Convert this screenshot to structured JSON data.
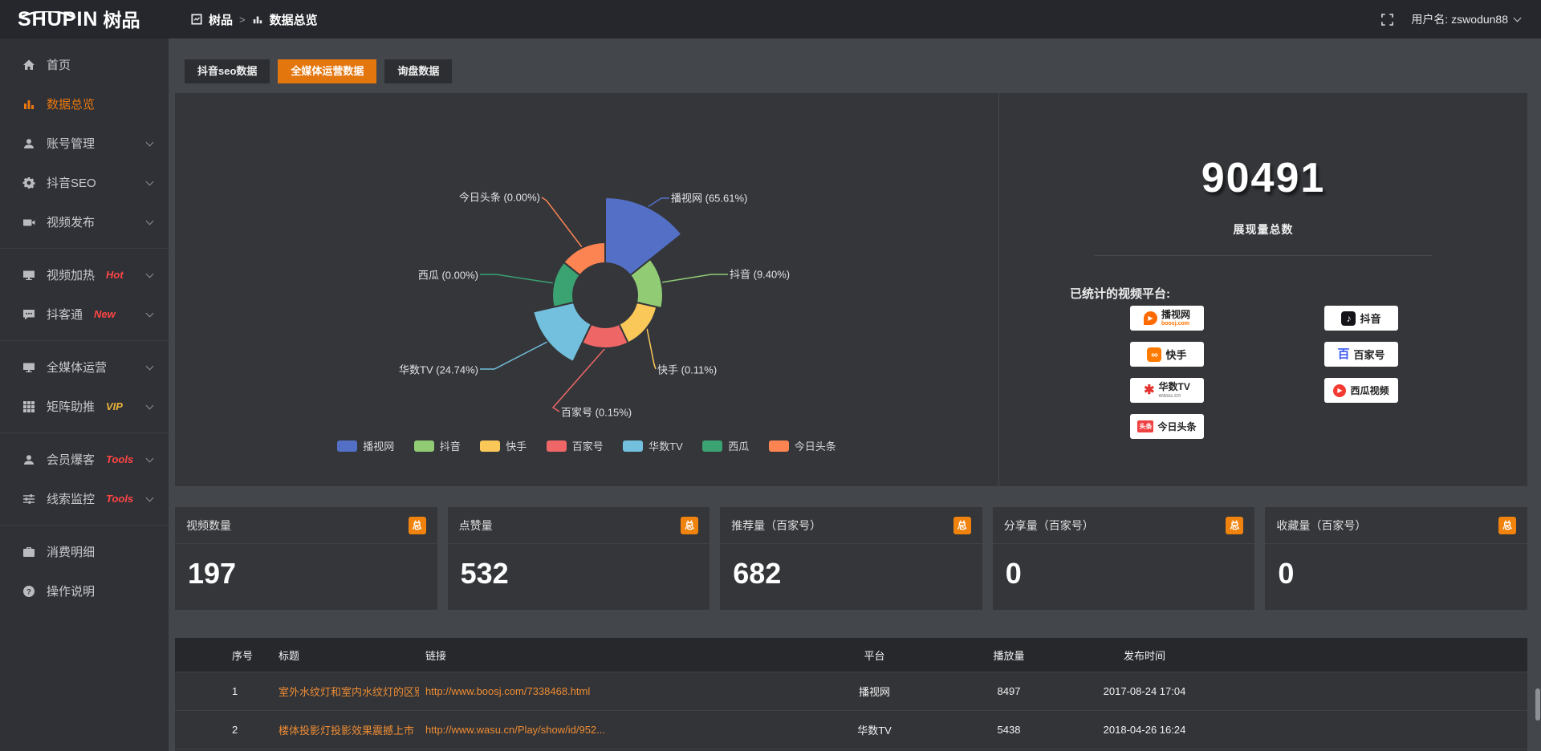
{
  "header": {
    "logo": {
      "brand": "SHUPIN",
      "brand_cn": "树品"
    },
    "breadcrumb": {
      "root": "树品",
      "separator": ">",
      "current": "数据总览"
    },
    "user": {
      "label": "用户名: zswodun88"
    }
  },
  "sidebar": {
    "groups": [
      {
        "items": [
          {
            "label": "首页",
            "icon": "home-icon"
          },
          {
            "label": "数据总览",
            "icon": "bar-chart-icon",
            "active": true
          },
          {
            "label": "账号管理",
            "icon": "user-icon"
          },
          {
            "label": "抖音SEO",
            "icon": "gear-icon"
          },
          {
            "label": "视频发布",
            "icon": "video-icon"
          }
        ]
      },
      {
        "items": [
          {
            "label": "视频加热",
            "icon": "screen-icon",
            "badge": "Hot"
          },
          {
            "label": "抖客通",
            "icon": "chat-icon",
            "badge": "New"
          }
        ]
      },
      {
        "items": [
          {
            "label": "全媒体运营",
            "icon": "monitor-icon"
          },
          {
            "label": "矩阵助推",
            "icon": "grid-icon",
            "badge": "VIP"
          }
        ]
      },
      {
        "items": [
          {
            "label": "会员爆客",
            "icon": "member-icon",
            "badge": "Tools"
          },
          {
            "label": "线索监控",
            "icon": "sliders-icon",
            "badge": "Tools"
          }
        ]
      },
      {
        "items": [
          {
            "label": "消费明细",
            "icon": "wallet-icon"
          },
          {
            "label": "操作说明",
            "icon": "help-icon"
          }
        ]
      }
    ]
  },
  "tabs": [
    {
      "label": "抖音seo数据",
      "active": false
    },
    {
      "label": "全媒体运营数据",
      "active": true
    },
    {
      "label": "询盘数据",
      "active": false
    }
  ],
  "chart_data": {
    "type": "pie",
    "style": "nightingale-rose-donut",
    "legend_position": "bottom",
    "inner_radius_px": 40,
    "slices": [
      {
        "name": "播视网",
        "percent": 65.61,
        "label": "播视网 (65.61%)",
        "color": "#5470c6",
        "radius_px": 122
      },
      {
        "name": "抖音",
        "percent": 9.4,
        "label": "抖音 (9.40%)",
        "color": "#91cc75",
        "radius_px": 72
      },
      {
        "name": "快手",
        "percent": 0.11,
        "label": "快手 (0.11%)",
        "color": "#fac858",
        "radius_px": 66
      },
      {
        "name": "百家号",
        "percent": 0.15,
        "label": "百家号 (0.15%)",
        "color": "#ee6666",
        "radius_px": 66
      },
      {
        "name": "华数TV",
        "percent": 24.74,
        "label": "华数TV (24.74%)",
        "color": "#73c0de",
        "radius_px": 92
      },
      {
        "name": "西瓜",
        "percent": 0.0,
        "label": "西瓜 (0.00%)",
        "color": "#3ba272",
        "radius_px": 66
      },
      {
        "name": "今日头条",
        "percent": 0.0,
        "label": "今日头条 (0.00%)",
        "color": "#fc8452",
        "radius_px": 66
      }
    ]
  },
  "summary": {
    "total_value": "90491",
    "total_label": "展现量总数",
    "platforms_title": "已统计的视频平台:",
    "platforms_left": [
      {
        "name": "播视网",
        "sub": "boosj.com",
        "icon": "boosj-icon",
        "glyph": "▶"
      },
      {
        "name": "快手",
        "icon": "kuaishou-icon",
        "glyph": "∞"
      },
      {
        "name": "华数TV",
        "sub": "wasu.cn",
        "icon": "wasu-icon",
        "glyph": "✱"
      },
      {
        "name": "今日头条",
        "icon": "toutiao-icon",
        "tag": "头条"
      }
    ],
    "platforms_right": [
      {
        "name": "抖音",
        "icon": "douyin-icon",
        "glyph": "♪"
      },
      {
        "name": "百家号",
        "icon": "baijiahao-icon",
        "glyph": "百"
      },
      {
        "name": "西瓜视频",
        "icon": "xigua-icon",
        "glyph": "▶"
      }
    ]
  },
  "stat_cards": [
    {
      "title": "视频数量",
      "badge": "总",
      "value": "197"
    },
    {
      "title": "点赞量",
      "badge": "总",
      "value": "532"
    },
    {
      "title": "推荐量（百家号）",
      "badge": "总",
      "value": "682"
    },
    {
      "title": "分享量（百家号）",
      "badge": "总",
      "value": "0"
    },
    {
      "title": "收藏量（百家号）",
      "badge": "总",
      "value": "0"
    }
  ],
  "table": {
    "headers": {
      "no": "序号",
      "title": "标题",
      "link": "链接",
      "platform": "平台",
      "plays": "播放量",
      "time": "发布时间"
    },
    "rows": [
      {
        "no": "1",
        "title": "室外水纹灯和室内水纹灯的区别和简介",
        "link": "http://www.boosj.com/7338468.html",
        "platform": "播视网",
        "plays": "8497",
        "time": "2017-08-24 17:04"
      },
      {
        "no": "2",
        "title": "楼体投影灯投影效果震撼上市",
        "link": "http://www.wasu.cn/Play/show/id/952...",
        "platform": "华数TV",
        "plays": "5438",
        "time": "2018-04-26 16:24"
      }
    ]
  },
  "colors": {
    "accent_orange": "#e4760e",
    "badge_orange": "#f0830d",
    "link_orange": "#ef8c33",
    "hot_red": "#ff4545",
    "vip_gold": "#e8b339",
    "panel_bg": "#34363a",
    "page_bg": "#43464b"
  }
}
